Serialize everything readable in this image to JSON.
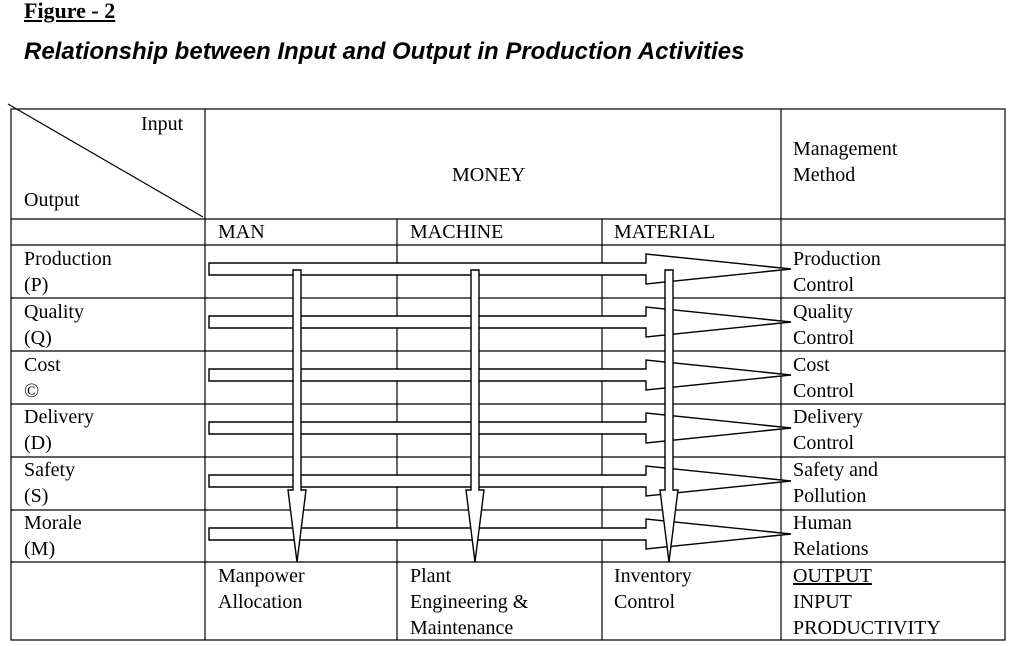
{
  "figure_label": "Figure - 2",
  "figure_title": "Relationship between Input and Output in Production Activities",
  "corner": {
    "input_label": "Input",
    "output_label": "Output"
  },
  "header": {
    "money": "MONEY",
    "management_method": [
      "Management",
      "Method"
    ],
    "inputs": [
      "MAN",
      "MACHINE",
      "MATERIAL"
    ]
  },
  "rows": [
    {
      "output": [
        "Production",
        "(P)"
      ],
      "method": [
        "Production",
        "Control"
      ]
    },
    {
      "output": [
        "Quality",
        "(Q)"
      ],
      "method": [
        "Quality",
        "Control"
      ]
    },
    {
      "output": [
        "Cost",
        "©"
      ],
      "method": [
        "Cost",
        "Control"
      ]
    },
    {
      "output": [
        "Delivery",
        "(D)"
      ],
      "method": [
        "Delivery",
        "Control"
      ]
    },
    {
      "output": [
        "Safety",
        "(S)"
      ],
      "method": [
        "Safety and",
        "Pollution"
      ]
    },
    {
      "output": [
        "Morale",
        "(M)"
      ],
      "method": [
        "Human",
        "Relations"
      ]
    }
  ],
  "footer": {
    "man": [
      "Manpower",
      "Allocation"
    ],
    "machine": [
      "Plant",
      "Engineering &",
      "Maintenance"
    ],
    "material": [
      "Inventory",
      "Control"
    ],
    "summary": [
      "OUTPUT",
      "INPUT",
      "PRODUCTIVITY"
    ]
  }
}
